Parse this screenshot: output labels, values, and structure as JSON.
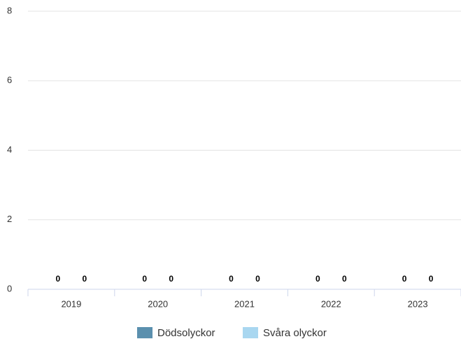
{
  "chart_data": {
    "type": "bar",
    "categories": [
      "2019",
      "2020",
      "2021",
      "2022",
      "2023"
    ],
    "series": [
      {
        "name": "Dödsolyckor",
        "color": "#5b90ae",
        "values": [
          0,
          0,
          0,
          0,
          0
        ]
      },
      {
        "name": "Svåra olyckor",
        "color": "#a9d7f0",
        "values": [
          0,
          0,
          0,
          0,
          0
        ]
      }
    ],
    "ylim": [
      0,
      8
    ],
    "yticks": [
      0,
      2,
      4,
      6,
      8
    ],
    "grid": true,
    "legend": "bottom"
  }
}
